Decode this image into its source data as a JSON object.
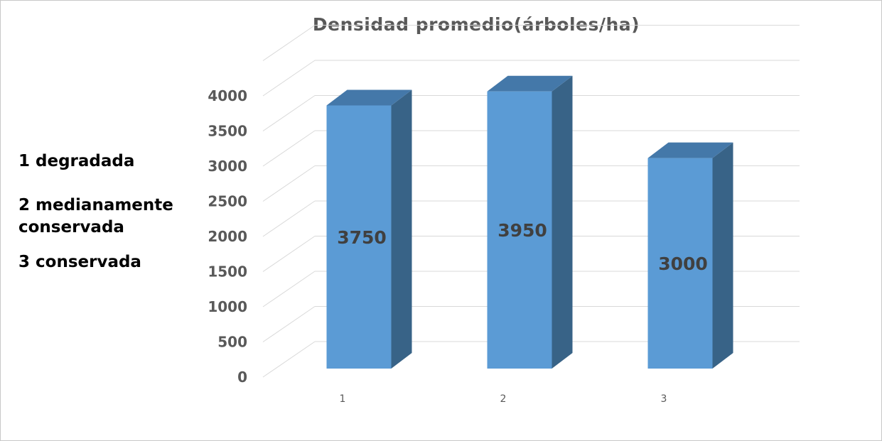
{
  "chart_data": {
    "type": "bar",
    "title": "Densidad promedio(árboles/ha)",
    "categories": [
      "1",
      "2",
      "3"
    ],
    "values": [
      3750,
      3950,
      3000
    ],
    "data_labels": [
      "3750",
      "3950",
      "3000"
    ],
    "y_ticks": [
      "0",
      "500",
      "1000",
      "1500",
      "2000",
      "2500",
      "3000",
      "3500",
      "4000"
    ],
    "ylim": [
      0,
      4500
    ],
    "grid": true,
    "style_3d": true,
    "xlabel": "",
    "ylabel": "",
    "colors": {
      "bar_front": "#5b9bd5",
      "bar_side": "#386387",
      "bar_top": "#4478a9",
      "grid": "#d9d9d9",
      "title": "#595959",
      "axis_text": "#595959"
    }
  },
  "legend_notes": {
    "line1": "1 degradada",
    "line2a": "2 medianamente",
    "line2b": "conservada",
    "line3": "3 conservada"
  }
}
